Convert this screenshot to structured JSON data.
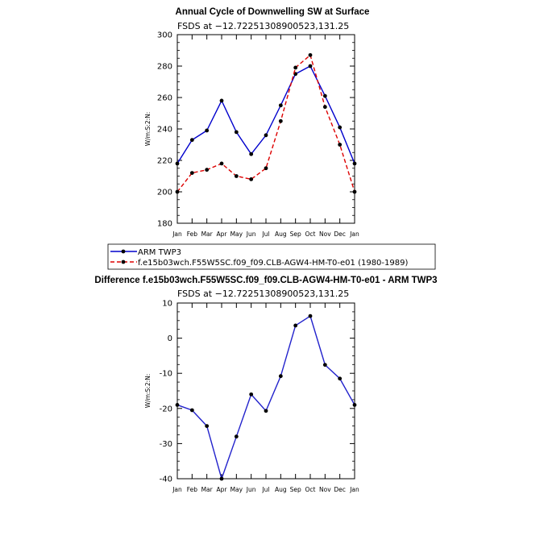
{
  "chart_data": [
    {
      "type": "line",
      "title": "Annual Cycle of Downwelling SW at Surface",
      "subtitle": "FSDS at −12.72251308900523,131.25",
      "ylabel": "W/m:S:2:N:",
      "xlabel": "",
      "categories": [
        "Jan",
        "Feb",
        "Mar",
        "Apr",
        "May",
        "Jun",
        "Jul",
        "Aug",
        "Sep",
        "Oct",
        "Nov",
        "Dec",
        "Jan"
      ],
      "ylim": [
        180,
        300
      ],
      "yticks": [
        180,
        200,
        220,
        240,
        260,
        280,
        300
      ],
      "series": [
        {
          "name": "ARM TWP3",
          "color": "#0000cc",
          "dash": "solid",
          "values": [
            218,
            233,
            239,
            258,
            238,
            224,
            236,
            255,
            275,
            280,
            261,
            241,
            218
          ]
        },
        {
          "name": "f.e15b03wch.F55W5SC.f09_f09.CLB-AGW4-HM-T0-e01 (1980-1989)",
          "color": "#dd0000",
          "dash": "dashed",
          "values": [
            200,
            212,
            214,
            218,
            210,
            208,
            215,
            245,
            279,
            287,
            254,
            230,
            200
          ]
        }
      ]
    },
    {
      "type": "line",
      "title": "Difference f.e15b03wch.F55W5SC.f09_f09.CLB-AGW4-HM-T0-e01 - ARM TWP3",
      "subtitle": "FSDS at −12.72251308900523,131.25",
      "ylabel": "W/m:S:2:N:",
      "xlabel": "",
      "categories": [
        "Jan",
        "Feb",
        "Mar",
        "Apr",
        "May",
        "Jun",
        "Jul",
        "Aug",
        "Sep",
        "Oct",
        "Nov",
        "Dec",
        "Jan"
      ],
      "ylim": [
        -40,
        10
      ],
      "yticks": [
        -40,
        -30,
        -20,
        -10,
        0,
        10
      ],
      "series": [
        {
          "name": "difference",
          "color": "#2222cc",
          "dash": "solid",
          "values": [
            -19,
            -20.5,
            -25,
            -40,
            -28,
            -16,
            -20.7,
            -10.8,
            3.6,
            6.3,
            -7.6,
            -11.5,
            -19
          ]
        }
      ]
    }
  ],
  "legend": {
    "items": [
      {
        "label": "ARM TWP3"
      },
      {
        "label": "f.e15b03wch.F55W5SC.f09_f09.CLB-AGW4-HM-T0-e01 (1980-1989)"
      }
    ]
  }
}
